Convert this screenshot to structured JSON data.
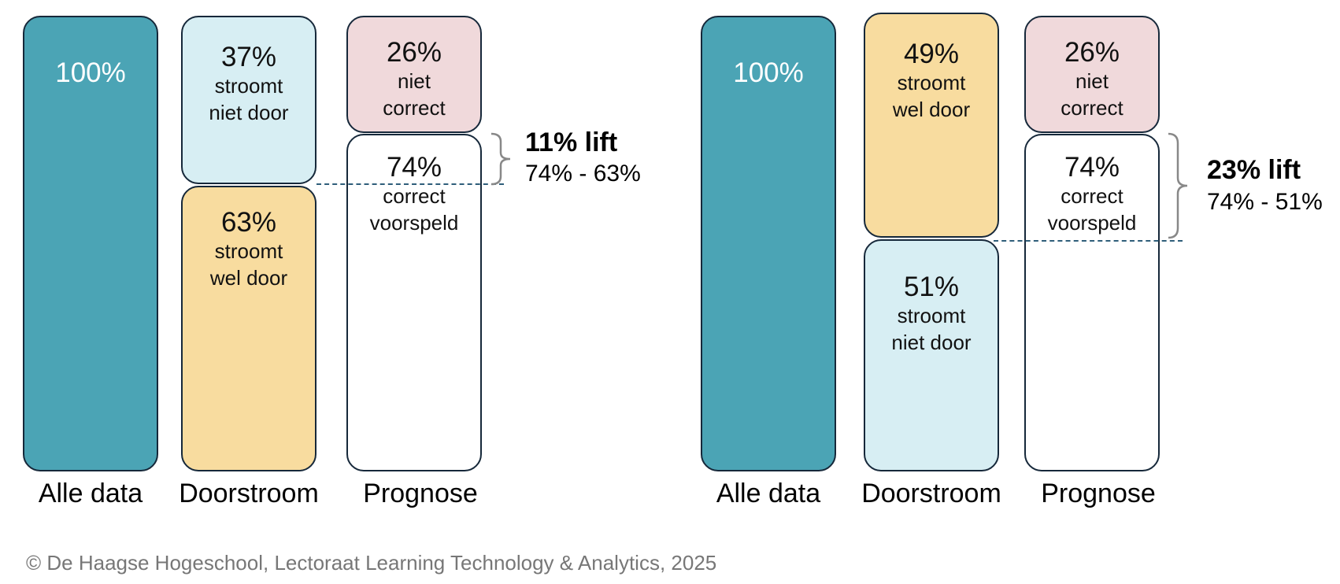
{
  "left": {
    "alle_data": {
      "pct": "100%"
    },
    "doorstroom_top": {
      "pct": "37%",
      "line1": "stroomt",
      "line2": "niet door"
    },
    "doorstroom_bottom": {
      "pct": "63%",
      "line1": "stroomt",
      "line2": "wel door"
    },
    "prognose_top": {
      "pct": "26%",
      "line1": "niet",
      "line2": "correct"
    },
    "prognose_bottom": {
      "pct": "74%",
      "line1": "correct",
      "line2": "voorspeld"
    },
    "lift_title": "11% lift",
    "lift_calc": "74% - 63%",
    "labels": {
      "col1": "Alle data",
      "col2": "Doorstroom",
      "col3": "Prognose"
    }
  },
  "right": {
    "alle_data": {
      "pct": "100%"
    },
    "doorstroom_top": {
      "pct": "49%",
      "line1": "stroomt",
      "line2": "wel door"
    },
    "doorstroom_bottom": {
      "pct": "51%",
      "line1": "stroomt",
      "line2": "niet door"
    },
    "prognose_top": {
      "pct": "26%",
      "line1": "niet",
      "line2": "correct"
    },
    "prognose_bottom": {
      "pct": "74%",
      "line1": "correct",
      "line2": "voorspeld"
    },
    "lift_title": "23% lift",
    "lift_calc": "74% - 51%",
    "labels": {
      "col1": "Alle data",
      "col2": "Doorstroom",
      "col3": "Prognose"
    }
  },
  "colors": {
    "alle_data": "#4ba4b5",
    "stroomt_niet_door": "#d7eef3",
    "stroomt_wel_door": "#f8dc9f",
    "niet_correct": "#f0d9db",
    "correct_voorspeld": "#ffffff"
  },
  "footer": "© De Haagse Hogeschool, Lectoraat Learning Technology & Analytics, 2025"
}
